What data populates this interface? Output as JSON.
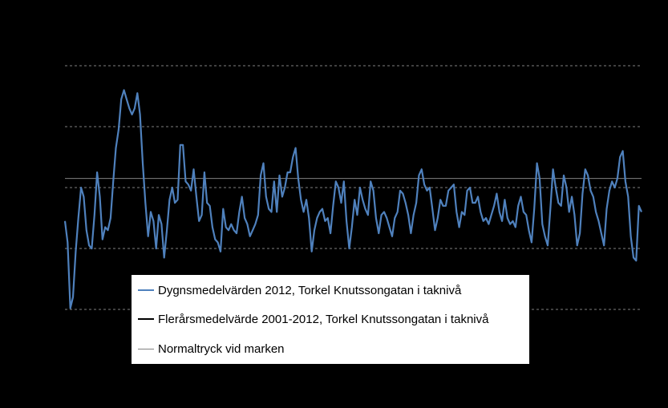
{
  "chart_data": {
    "type": "line",
    "title": "",
    "xlabel": "",
    "ylabel": "",
    "ylim": [
      0,
      5
    ],
    "gridlines": [
      1,
      2,
      3,
      4,
      5
    ],
    "background": "#000000",
    "grid_color": "#808080",
    "legend_placement": "bottom-center",
    "series": [
      {
        "name": "Dygnsmedelvärden 2012, Torkel Knutssongatan i taknivå",
        "color": "#4F81BD",
        "values": [
          2.45,
          2.1,
          1.02,
          1.2,
          1.95,
          2.5,
          3.0,
          2.85,
          2.3,
          2.05,
          2.0,
          2.55,
          3.25,
          2.85,
          2.15,
          2.35,
          2.3,
          2.5,
          3.1,
          3.65,
          3.95,
          4.45,
          4.6,
          4.45,
          4.3,
          4.2,
          4.3,
          4.55,
          4.2,
          3.4,
          2.75,
          2.2,
          2.6,
          2.45,
          2.0,
          2.55,
          2.4,
          1.85,
          2.3,
          2.8,
          3.0,
          2.75,
          2.8,
          3.7,
          3.7,
          3.1,
          3.05,
          2.95,
          3.3,
          2.85,
          2.45,
          2.55,
          3.25,
          2.75,
          2.7,
          2.35,
          2.15,
          2.1,
          1.95,
          2.65,
          2.35,
          2.3,
          2.4,
          2.3,
          2.25,
          2.6,
          2.85,
          2.5,
          2.4,
          2.2,
          2.3,
          2.4,
          2.55,
          3.2,
          3.4,
          2.85,
          2.65,
          2.6,
          3.1,
          2.6,
          3.2,
          2.85,
          3.0,
          3.25,
          3.25,
          3.5,
          3.65,
          3.15,
          2.8,
          2.6,
          2.8,
          2.5,
          1.95,
          2.3,
          2.5,
          2.6,
          2.65,
          2.45,
          2.5,
          2.25,
          2.7,
          3.1,
          3.0,
          2.75,
          3.1,
          2.45,
          2.0,
          2.35,
          2.8,
          2.55,
          3.0,
          2.8,
          2.65,
          2.55,
          3.1,
          2.95,
          2.5,
          2.25,
          2.55,
          2.6,
          2.5,
          2.35,
          2.2,
          2.5,
          2.6,
          2.95,
          2.9,
          2.75,
          2.55,
          2.25,
          2.55,
          2.75,
          3.2,
          3.3,
          3.05,
          2.95,
          3.0,
          2.65,
          2.3,
          2.5,
          2.8,
          2.7,
          2.7,
          2.95,
          3.0,
          3.05,
          2.6,
          2.35,
          2.6,
          2.55,
          2.95,
          3.0,
          2.75,
          2.75,
          2.85,
          2.6,
          2.45,
          2.5,
          2.4,
          2.55,
          2.7,
          2.9,
          2.6,
          2.45,
          2.8,
          2.5,
          2.4,
          2.45,
          2.35,
          2.7,
          2.85,
          2.6,
          2.55,
          2.3,
          2.1,
          2.65,
          3.4,
          3.15,
          2.4,
          2.2,
          2.05,
          2.65,
          3.3,
          3.0,
          2.75,
          2.7,
          3.2,
          3.0,
          2.6,
          2.85,
          2.55,
          2.05,
          2.25,
          2.9,
          3.3,
          3.2,
          2.95,
          2.85,
          2.6,
          2.45,
          2.25,
          2.05,
          2.65,
          2.95,
          3.1,
          3.0,
          3.15,
          3.5,
          3.6,
          3.1,
          2.85,
          2.2,
          1.85,
          1.8,
          2.7,
          2.6
        ]
      },
      {
        "name": "Flerårsmedelvärde 2001-2012, Torkel Knutssongatan i taknivå",
        "color": "#000000",
        "values": []
      },
      {
        "name": "Normaltryck vid marken",
        "color": "#808080",
        "values": [
          3.15
        ]
      }
    ]
  }
}
